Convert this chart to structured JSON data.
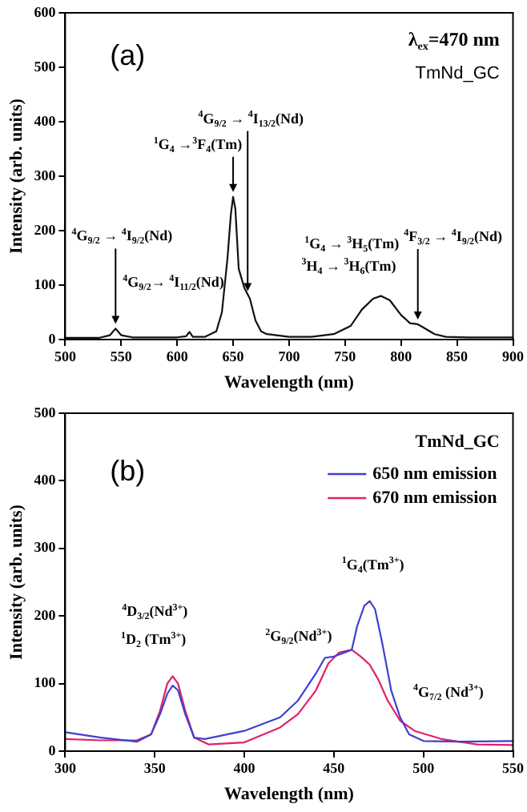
{
  "chart_data": [
    {
      "type": "line",
      "xlabel": "Wavelength (nm)",
      "ylabel": "Intensity (arb. units)",
      "xlim": [
        500,
        900
      ],
      "xticks": [
        500,
        550,
        600,
        650,
        700,
        750,
        800,
        850,
        900
      ],
      "ylim": [
        0,
        600
      ],
      "yticks": [
        0,
        100,
        200,
        300,
        400,
        500,
        600
      ],
      "grid": false,
      "legend": false,
      "marker": "none",
      "line_style": "solid",
      "series": [
        {
          "color": "#111111",
          "x": [
            500,
            530,
            540,
            545,
            550,
            560,
            600,
            608,
            611,
            614,
            625,
            635,
            640,
            645,
            648,
            650,
            652,
            655,
            660,
            665,
            670,
            675,
            680,
            700,
            720,
            740,
            755,
            765,
            775,
            782,
            790,
            800,
            808,
            815,
            820,
            830,
            840,
            860,
            900
          ],
          "values": [
            3,
            3,
            8,
            20,
            8,
            4,
            4,
            6,
            14,
            5,
            5,
            15,
            50,
            150,
            230,
            262,
            240,
            130,
            95,
            75,
            35,
            15,
            10,
            5,
            5,
            10,
            25,
            55,
            75,
            80,
            72,
            45,
            30,
            28,
            22,
            10,
            5,
            4,
            4
          ]
        }
      ],
      "annotations": [
        "(a)",
        "λ$_{ex}$=470 nm",
        "TmNd_GC",
        {
          "text": "$^{4}$G$_{9/2}$ → $^{4}$I$_{9/2}$(Nd)",
          "x": 545,
          "y": 20
        },
        {
          "text": "$^{4}$G$_{9/2}$→ $^{4}$I$_{11/2}$(Nd)",
          "x": 611,
          "y": 14
        },
        {
          "text": "$^{1}$G$_{4}$ →$^{3}$F$_{4}$(Tm)",
          "x": 650,
          "y": 262
        },
        {
          "text": "$^{4}$G$_{9/2}$ → $^{4}$I$_{13/2}$(Nd)",
          "x": 663,
          "y": 80
        },
        "$^{1}$G$_{4}$ → $^{3}$H$_{5}$(Tm)",
        {
          "text": "$^{3}$H$_{4}$ → $^{3}$H$_{6}$(Tm)",
          "x": 782,
          "y": 80
        },
        {
          "text": "$^{4}$F$_{3/2}$ → $^{4}$I$_{9/2}$(Nd)",
          "x": 815,
          "y": 28
        }
      ]
    },
    {
      "type": "line",
      "xlabel": "Wavelength (nm)",
      "ylabel": "Intensity (arb. units)",
      "xlim": [
        300,
        550
      ],
      "xticks": [
        300,
        350,
        400,
        450,
        500,
        550
      ],
      "ylim": [
        0,
        500
      ],
      "yticks": [
        0,
        100,
        200,
        300,
        400,
        500
      ],
      "grid": false,
      "legend": "top right",
      "marker": "none",
      "line_style": "solid",
      "series": [
        {
          "name": "650 nm emission",
          "color": "#4040d0",
          "x": [
            300,
            320,
            340,
            348,
            353,
            357,
            360,
            363,
            367,
            372,
            378,
            400,
            420,
            430,
            440,
            445,
            450,
            455,
            460,
            463,
            467,
            470,
            473,
            477,
            482,
            487,
            492,
            500,
            520,
            550
          ],
          "values": [
            28,
            20,
            14,
            25,
            55,
            85,
            97,
            90,
            55,
            20,
            18,
            30,
            50,
            75,
            115,
            138,
            140,
            145,
            150,
            185,
            215,
            222,
            210,
            160,
            90,
            50,
            25,
            15,
            14,
            15
          ]
        },
        {
          "name": "670 nm emission",
          "color": "#e0206a",
          "x": [
            300,
            320,
            340,
            348,
            353,
            357,
            360,
            363,
            367,
            372,
            380,
            400,
            420,
            430,
            440,
            447,
            453,
            460,
            465,
            470,
            475,
            480,
            487,
            495,
            510,
            530,
            550
          ],
          "values": [
            18,
            16,
            16,
            25,
            60,
            100,
            111,
            100,
            60,
            20,
            10,
            13,
            35,
            55,
            90,
            130,
            146,
            150,
            140,
            128,
            105,
            75,
            45,
            30,
            18,
            10,
            9
          ]
        }
      ],
      "annotations": [
        "(b)",
        "TmNd_GC",
        "$^{4}$D$_{3/2}$(Nd$^{3+}$)",
        {
          "text": "$^{1}$D$_{2}$ (Tm$^{3+}$)",
          "x": 360,
          "y": 111
        },
        {
          "text": "$^{2}$G$_{9/2}$(Nd$^{3+}$)",
          "x": 450,
          "y": 140
        },
        {
          "text": "$^{1}$G$_{4}$(Tm$^{3+}$)",
          "x": 470,
          "y": 222
        },
        {
          "text": "$^{4}$G$_{7/2}$ (Nd$^{3+}$)",
          "x": 480,
          "y": 100
        }
      ]
    }
  ]
}
